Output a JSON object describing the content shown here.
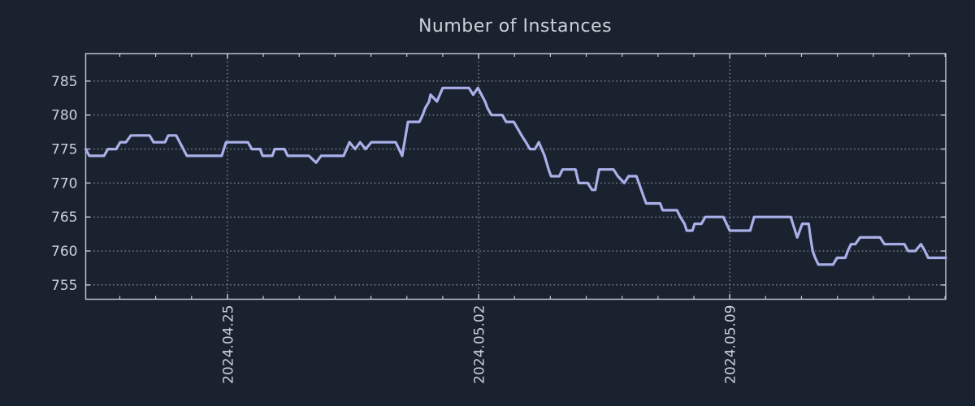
{
  "chart_data": {
    "type": "line",
    "title": "Number of Instances",
    "xlabel": "",
    "ylabel": "",
    "legend": "none",
    "grid": {
      "visible": true,
      "style": "dotted"
    },
    "colors": {
      "background": "#1a2230",
      "axis_line": "#c8cdd3",
      "grid_line": "#b4bac1",
      "tick_text": "#ccd1d7",
      "title_text": "#ccd1d7",
      "series_line": "#a9b0e9"
    },
    "y_axis": {
      "range": [
        752.9,
        789.05
      ],
      "ticks": [
        {
          "value": 785,
          "label": "785"
        },
        {
          "value": 780,
          "label": "780"
        },
        {
          "value": 775,
          "label": "775"
        },
        {
          "value": 770,
          "label": "770"
        },
        {
          "value": 765,
          "label": "765"
        },
        {
          "value": 760,
          "label": "760"
        },
        {
          "value": 755,
          "label": "755"
        }
      ]
    },
    "x_axis": {
      "unit": "date",
      "range_days": [
        0,
        23.97
      ],
      "major_ticks": [
        {
          "day": 3.95,
          "label": "2024.04.25"
        },
        {
          "day": 10.95,
          "label": "2024.05.02"
        },
        {
          "day": 17.95,
          "label": "2024.05.09"
        }
      ],
      "minor_ticks": {
        "start_day": 0.95,
        "interval_days": 1,
        "count": 24
      }
    },
    "series": [
      {
        "name": "Number of Instances",
        "color": "#a9b0e9",
        "points": [
          [
            0.0,
            775
          ],
          [
            0.1,
            774
          ],
          [
            0.51,
            774
          ],
          [
            0.62,
            775
          ],
          [
            0.85,
            775
          ],
          [
            0.96,
            776
          ],
          [
            1.12,
            776
          ],
          [
            1.26,
            777
          ],
          [
            1.78,
            777
          ],
          [
            1.89,
            776
          ],
          [
            2.21,
            776
          ],
          [
            2.3,
            777
          ],
          [
            2.52,
            777
          ],
          [
            2.82,
            774
          ],
          [
            3.79,
            774
          ],
          [
            3.91,
            776
          ],
          [
            4.52,
            776
          ],
          [
            4.63,
            775
          ],
          [
            4.86,
            775
          ],
          [
            4.93,
            774
          ],
          [
            5.2,
            774
          ],
          [
            5.27,
            775
          ],
          [
            5.54,
            775
          ],
          [
            5.63,
            774
          ],
          [
            6.22,
            774
          ],
          [
            6.42,
            773
          ],
          [
            6.56,
            774
          ],
          [
            7.19,
            774
          ],
          [
            7.35,
            776
          ],
          [
            7.51,
            775
          ],
          [
            7.65,
            776
          ],
          [
            7.8,
            775
          ],
          [
            7.96,
            776
          ],
          [
            8.64,
            776
          ],
          [
            8.82,
            774
          ],
          [
            8.98,
            779
          ],
          [
            9.3,
            779
          ],
          [
            9.39,
            780
          ],
          [
            9.46,
            781
          ],
          [
            9.57,
            782
          ],
          [
            9.61,
            783
          ],
          [
            9.79,
            782
          ],
          [
            9.95,
            784
          ],
          [
            10.68,
            784
          ],
          [
            10.8,
            783
          ],
          [
            10.93,
            784
          ],
          [
            11.13,
            782
          ],
          [
            11.2,
            781
          ],
          [
            11.31,
            780
          ],
          [
            11.61,
            780
          ],
          [
            11.72,
            779
          ],
          [
            11.93,
            779
          ],
          [
            12.04,
            778
          ],
          [
            12.15,
            777
          ],
          [
            12.27,
            776
          ],
          [
            12.38,
            775
          ],
          [
            12.52,
            775
          ],
          [
            12.63,
            776
          ],
          [
            12.79,
            774
          ],
          [
            12.9,
            772
          ],
          [
            12.97,
            771
          ],
          [
            13.2,
            771
          ],
          [
            13.29,
            772
          ],
          [
            13.65,
            772
          ],
          [
            13.74,
            770
          ],
          [
            13.99,
            770
          ],
          [
            14.11,
            769
          ],
          [
            14.2,
            769
          ],
          [
            14.31,
            772
          ],
          [
            14.71,
            772
          ],
          [
            14.83,
            771
          ],
          [
            15.01,
            770
          ],
          [
            15.13,
            771
          ],
          [
            15.35,
            771
          ],
          [
            15.55,
            768
          ],
          [
            15.62,
            767
          ],
          [
            16.01,
            767
          ],
          [
            16.08,
            766
          ],
          [
            16.48,
            766
          ],
          [
            16.57,
            765
          ],
          [
            16.69,
            764
          ],
          [
            16.75,
            763
          ],
          [
            16.91,
            763
          ],
          [
            16.97,
            764
          ],
          [
            17.16,
            764
          ],
          [
            17.27,
            765
          ],
          [
            17.77,
            765
          ],
          [
            17.95,
            763
          ],
          [
            18.52,
            763
          ],
          [
            18.63,
            765
          ],
          [
            19.65,
            765
          ],
          [
            19.83,
            762
          ],
          [
            19.97,
            764
          ],
          [
            20.15,
            764
          ],
          [
            20.2,
            762
          ],
          [
            20.26,
            760
          ],
          [
            20.33,
            759
          ],
          [
            20.42,
            758
          ],
          [
            20.83,
            758
          ],
          [
            20.94,
            759
          ],
          [
            21.17,
            759
          ],
          [
            21.24,
            760
          ],
          [
            21.33,
            761
          ],
          [
            21.45,
            761
          ],
          [
            21.58,
            762
          ],
          [
            22.14,
            762
          ],
          [
            22.26,
            761
          ],
          [
            22.82,
            761
          ],
          [
            22.92,
            760
          ],
          [
            23.12,
            760
          ],
          [
            23.28,
            761
          ],
          [
            23.39,
            760
          ],
          [
            23.48,
            759
          ],
          [
            23.97,
            759
          ]
        ]
      }
    ]
  }
}
